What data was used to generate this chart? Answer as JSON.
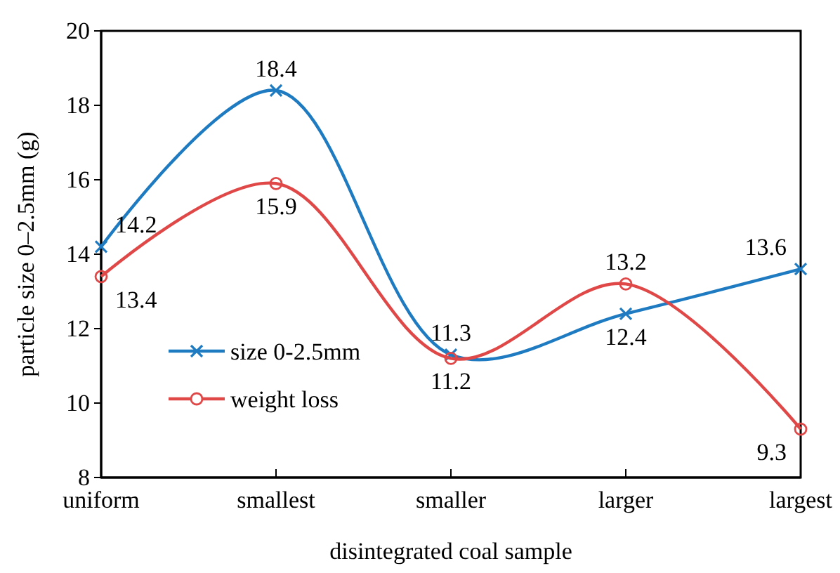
{
  "chart_data": {
    "type": "line",
    "xlabel": "disintegrated coal sample",
    "ylabel": "particle size 0–2.5mm (g)",
    "categories": [
      "uniform",
      "smallest",
      "smaller",
      "larger",
      "largest"
    ],
    "series": [
      {
        "name": "size 0-2.5mm",
        "color": "#1f7bc1",
        "marker": "cross",
        "values": [
          14.2,
          18.4,
          11.3,
          12.4,
          13.6
        ]
      },
      {
        "name": "weight loss",
        "color": "#e04848",
        "marker": "circle",
        "values": [
          13.4,
          15.9,
          11.2,
          13.2,
          9.3
        ]
      }
    ],
    "ylim": [
      8,
      20
    ],
    "yticks": [
      8,
      10,
      12,
      14,
      16,
      18,
      20
    ],
    "grid": false,
    "legend": "left",
    "data_labels": true
  }
}
